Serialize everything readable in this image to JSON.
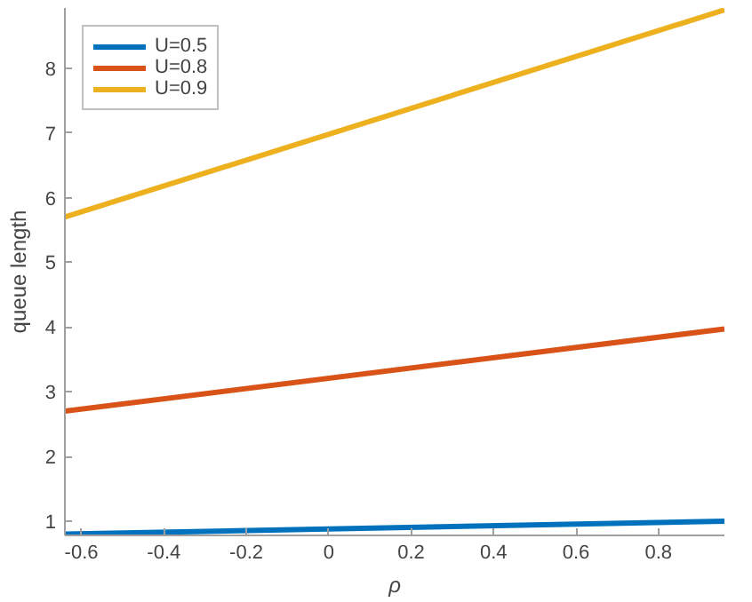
{
  "chart_data": {
    "type": "line",
    "xlabel": "ρ",
    "ylabel": "queue length",
    "x": [
      -0.64,
      0.96
    ],
    "series": [
      {
        "name": "U=0.5",
        "color": "#0072bd",
        "values": [
          0.8,
          1.0
        ]
      },
      {
        "name": "U=0.8",
        "color": "#d95319",
        "values": [
          2.7,
          3.97
        ]
      },
      {
        "name": "U=0.9",
        "color": "#edb120",
        "values": [
          5.7,
          8.9
        ]
      }
    ],
    "xlim": [
      -0.64,
      0.96
    ],
    "ylim": [
      0.78,
      8.93
    ],
    "xticks": [
      -0.6,
      -0.4,
      -0.2,
      0,
      0.2,
      0.4,
      0.6,
      0.8
    ],
    "yticks": [
      1,
      2,
      3,
      4,
      5,
      6,
      7,
      8
    ],
    "legend": "top left",
    "grid": false,
    "line_style": "solid",
    "marker": "none"
  }
}
